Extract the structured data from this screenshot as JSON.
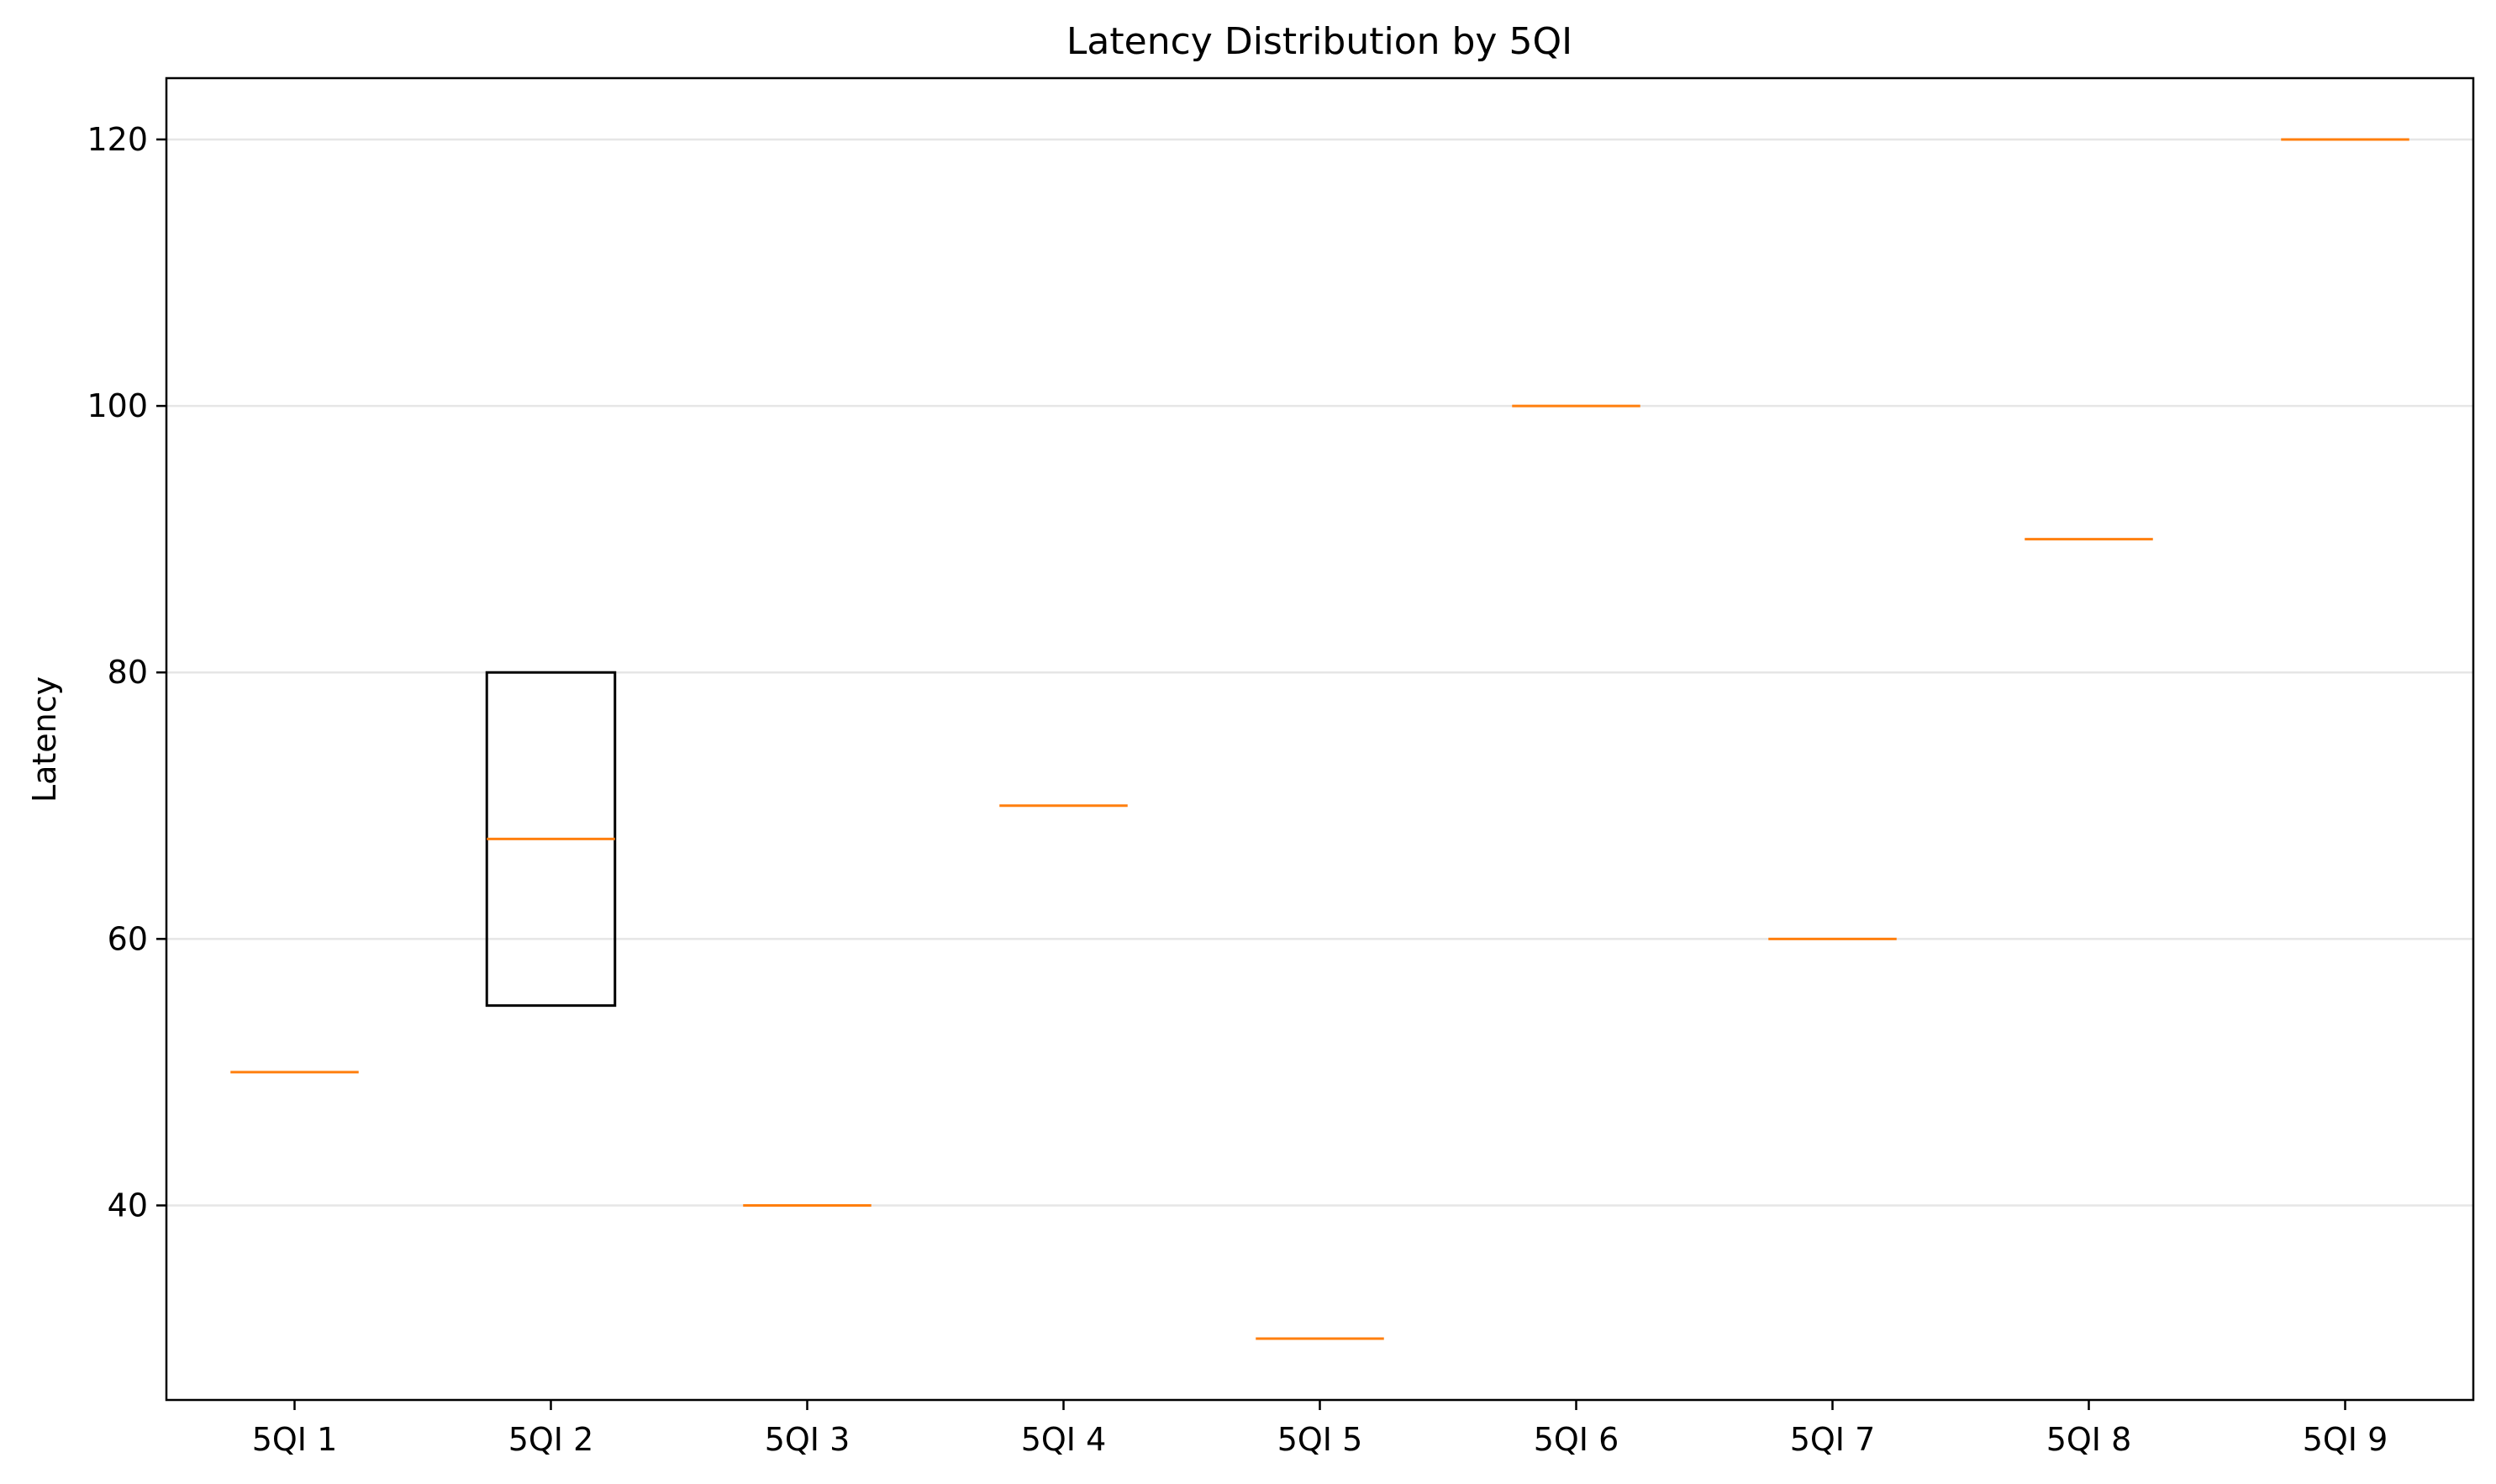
{
  "chart_data": {
    "type": "box",
    "title": "Latency Distribution by 5QI",
    "xlabel": "",
    "ylabel": "Latency",
    "ylim": [
      25.4,
      124.6
    ],
    "yticks": [
      40,
      60,
      80,
      100,
      120
    ],
    "grid": "horizontal",
    "categories": [
      "5QI 1",
      "5QI 2",
      "5QI 3",
      "5QI 4",
      "5QI 5",
      "5QI 6",
      "5QI 7",
      "5QI 8",
      "5QI 9"
    ],
    "boxes": [
      {
        "q1": 50,
        "median": 50,
        "q3": 50
      },
      {
        "q1": 55,
        "median": 67.5,
        "q3": 80
      },
      {
        "q1": 40,
        "median": 40,
        "q3": 40
      },
      {
        "q1": 70,
        "median": 70,
        "q3": 70
      },
      {
        "q1": 30,
        "median": 30,
        "q3": 30
      },
      {
        "q1": 100,
        "median": 100,
        "q3": 100
      },
      {
        "q1": 60,
        "median": 60,
        "q3": 60
      },
      {
        "q1": 90,
        "median": 90,
        "q3": 90
      },
      {
        "q1": 120,
        "median": 120,
        "q3": 120
      }
    ],
    "colors": {
      "box": "#000000",
      "median": "#ff7f0e",
      "grid": "#e6e6e6"
    }
  }
}
